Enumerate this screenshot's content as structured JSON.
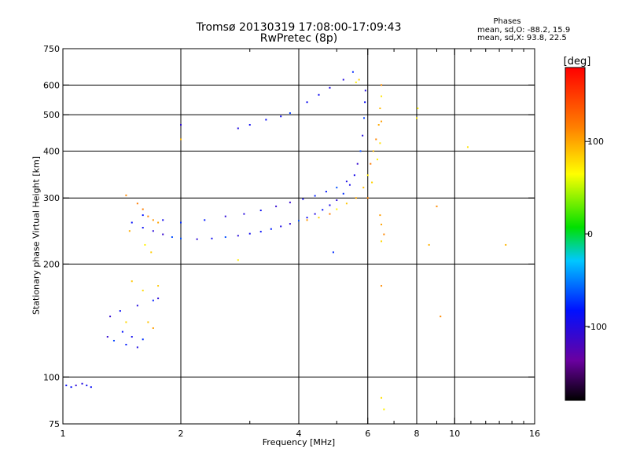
{
  "title": {
    "line1": "Tromsø 20130319 17:08:00-17:09:43",
    "line2": "RwPretec (8p)"
  },
  "phases": {
    "title": "Phases",
    "o_line": "mean, sd,O: -88.2, 15.9",
    "x_line": "mean, sd,X:  93.8, 22.5"
  },
  "colorbar": {
    "label": "[deg]",
    "ticks": [
      {
        "value": 100,
        "label": "100"
      },
      {
        "value": 0,
        "label": "0"
      },
      {
        "value": -100,
        "label": "-100"
      }
    ],
    "range": [
      -180,
      180
    ]
  },
  "chart_data": {
    "type": "scatter",
    "title": "Tromsø 20130319 17:08:00-17:09:43",
    "subtitle": "RwPretec (8p)",
    "xlabel": "Frequency [MHz]",
    "ylabel": "Stationary phase Virtual Height [km]",
    "x_scale": "log",
    "y_scale": "log",
    "xlim": [
      1,
      16
    ],
    "ylim": [
      75,
      750
    ],
    "x_ticks": [
      1,
      2,
      4,
      6,
      8,
      10,
      16
    ],
    "x_tick_labels": [
      "1",
      "2",
      "4",
      "6",
      "8",
      "10",
      "16"
    ],
    "x_minor_ticks": [
      3,
      5,
      7,
      9,
      11,
      12,
      13,
      14,
      15
    ],
    "y_ticks": [
      75,
      100,
      200,
      300,
      400,
      500,
      600,
      750
    ],
    "y_tick_labels": [
      "75",
      "100",
      "200",
      "300",
      "400",
      "500",
      "600",
      "750"
    ],
    "x_grid": [
      2,
      4,
      6,
      8,
      10
    ],
    "y_grid": [
      100,
      200,
      300,
      400,
      500,
      600
    ],
    "grid": true,
    "series": [
      {
        "name": "O",
        "points": [
          [
            1.02,
            95
          ],
          [
            1.05,
            94
          ],
          [
            1.08,
            95
          ],
          [
            1.12,
            96
          ],
          [
            1.15,
            95
          ],
          [
            1.18,
            94
          ],
          [
            1.3,
            128
          ],
          [
            1.35,
            125
          ],
          [
            1.42,
            132
          ],
          [
            1.5,
            128
          ],
          [
            1.55,
            120
          ],
          [
            1.6,
            126
          ],
          [
            1.45,
            122
          ],
          [
            1.32,
            145
          ],
          [
            1.4,
            150
          ],
          [
            1.55,
            155
          ],
          [
            1.7,
            160
          ],
          [
            1.75,
            162
          ],
          [
            1.5,
            258
          ],
          [
            1.6,
            250
          ],
          [
            1.7,
            245
          ],
          [
            1.8,
            240
          ],
          [
            1.9,
            236
          ],
          [
            2.0,
            234
          ],
          [
            2.2,
            233
          ],
          [
            2.4,
            234
          ],
          [
            2.6,
            236
          ],
          [
            2.8,
            238
          ],
          [
            3.0,
            241
          ],
          [
            3.2,
            244
          ],
          [
            3.4,
            248
          ],
          [
            3.6,
            252
          ],
          [
            3.8,
            256
          ],
          [
            4.0,
            261
          ],
          [
            4.2,
            266
          ],
          [
            4.4,
            272
          ],
          [
            4.6,
            279
          ],
          [
            4.8,
            287
          ],
          [
            5.0,
            296
          ],
          [
            5.2,
            308
          ],
          [
            5.4,
            325
          ],
          [
            5.55,
            345
          ],
          [
            5.65,
            370
          ],
          [
            5.75,
            400
          ],
          [
            5.82,
            440
          ],
          [
            5.87,
            490
          ],
          [
            5.9,
            540
          ],
          [
            5.92,
            580
          ],
          [
            1.6,
            270
          ],
          [
            1.8,
            262
          ],
          [
            2.0,
            258
          ],
          [
            2.3,
            262
          ],
          [
            2.6,
            268
          ],
          [
            2.9,
            272
          ],
          [
            3.2,
            278
          ],
          [
            3.5,
            285
          ],
          [
            3.8,
            292
          ],
          [
            4.1,
            298
          ],
          [
            4.4,
            304
          ],
          [
            4.7,
            312
          ],
          [
            5.0,
            320
          ],
          [
            5.3,
            332
          ],
          [
            3.0,
            470
          ],
          [
            3.3,
            485
          ],
          [
            3.6,
            495
          ],
          [
            3.8,
            505
          ],
          [
            4.2,
            540
          ],
          [
            4.5,
            565
          ],
          [
            4.8,
            590
          ],
          [
            5.2,
            620
          ],
          [
            5.5,
            650
          ],
          [
            2.0,
            470
          ],
          [
            2.8,
            460
          ],
          [
            4.9,
            215
          ]
        ]
      },
      {
        "name": "X",
        "points": [
          [
            1.45,
            305
          ],
          [
            1.55,
            290
          ],
          [
            1.6,
            280
          ],
          [
            1.65,
            268
          ],
          [
            1.7,
            262
          ],
          [
            1.75,
            258
          ],
          [
            1.48,
            245
          ],
          [
            1.62,
            225
          ],
          [
            1.68,
            215
          ],
          [
            1.5,
            180
          ],
          [
            1.6,
            170
          ],
          [
            1.65,
            140
          ],
          [
            1.7,
            135
          ],
          [
            4.2,
            262
          ],
          [
            4.5,
            266
          ],
          [
            4.8,
            272
          ],
          [
            5.0,
            280
          ],
          [
            5.3,
            290
          ],
          [
            5.6,
            300
          ],
          [
            5.85,
            320
          ],
          [
            6.0,
            345
          ],
          [
            6.1,
            370
          ],
          [
            6.2,
            400
          ],
          [
            6.3,
            430
          ],
          [
            6.4,
            470
          ],
          [
            6.45,
            520
          ],
          [
            6.5,
            560
          ],
          [
            6.5,
            600
          ],
          [
            6.0,
            300
          ],
          [
            6.15,
            330
          ],
          [
            6.35,
            380
          ],
          [
            6.45,
            420
          ],
          [
            6.5,
            480
          ],
          [
            6.45,
            270
          ],
          [
            6.5,
            255
          ],
          [
            6.6,
            240
          ],
          [
            6.5,
            230
          ],
          [
            6.5,
            175
          ],
          [
            6.5,
            88
          ],
          [
            6.6,
            82
          ],
          [
            8.0,
            490
          ],
          [
            8.05,
            520
          ],
          [
            8.6,
            225
          ],
          [
            9.0,
            285
          ],
          [
            9.2,
            145
          ],
          [
            10.8,
            410
          ],
          [
            13.5,
            225
          ],
          [
            5.6,
            610
          ],
          [
            5.7,
            620
          ],
          [
            2.0,
            430
          ],
          [
            2.8,
            205
          ],
          [
            1.75,
            175
          ],
          [
            1.45,
            140
          ]
        ]
      }
    ]
  }
}
